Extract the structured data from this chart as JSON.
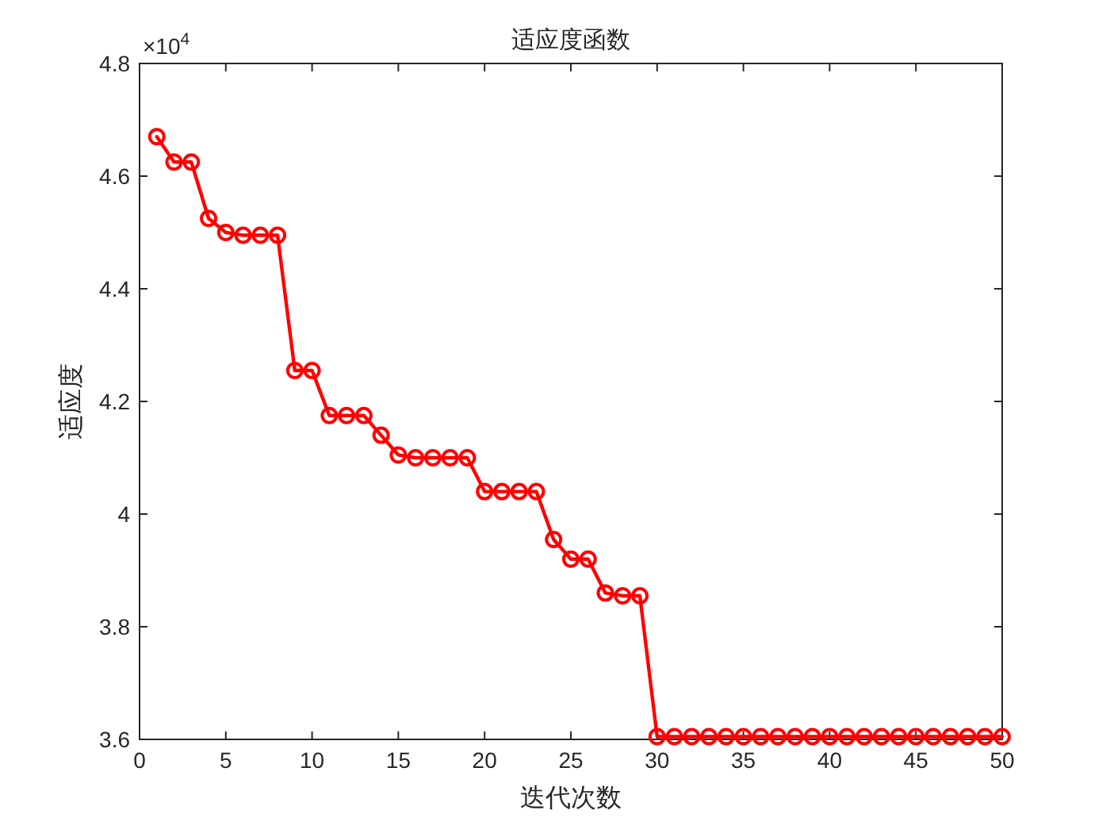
{
  "chart_data": {
    "type": "line",
    "title": "适应度函数",
    "xlabel": "迭代次数",
    "ylabel": "适应度",
    "annotations": [
      "×10$^{4}$"
    ],
    "x": [
      1,
      2,
      3,
      4,
      5,
      6,
      7,
      8,
      9,
      10,
      11,
      12,
      13,
      14,
      15,
      16,
      17,
      18,
      19,
      20,
      21,
      22,
      23,
      24,
      25,
      26,
      27,
      28,
      29,
      30,
      31,
      32,
      33,
      34,
      35,
      36,
      37,
      38,
      39,
      40,
      41,
      42,
      43,
      44,
      45,
      46,
      47,
      48,
      49,
      50
    ],
    "series": [
      {
        "color": "#ff0000",
        "values": [
          4.67,
          4.625,
          4.625,
          4.525,
          4.5,
          4.495,
          4.495,
          4.495,
          4.255,
          4.255,
          4.175,
          4.175,
          4.175,
          4.14,
          4.105,
          4.1,
          4.1,
          4.1,
          4.1,
          4.04,
          4.04,
          4.04,
          4.04,
          3.955,
          3.92,
          3.92,
          3.86,
          3.855,
          3.855,
          3.605,
          3.605,
          3.605,
          3.605,
          3.605,
          3.605,
          3.605,
          3.605,
          3.605,
          3.605,
          3.605,
          3.605,
          3.605,
          3.605,
          3.605,
          3.605,
          3.605,
          3.605,
          3.605,
          3.605,
          3.605
        ]
      }
    ],
    "xlim": [
      0,
      50
    ],
    "xticks": [
      0,
      5,
      10,
      15,
      20,
      25,
      30,
      35,
      40,
      45,
      50
    ],
    "ylim": [
      3.6,
      4.8
    ],
    "yticks": [
      3.6,
      3.8,
      4,
      4.2,
      4.4,
      4.6,
      4.8
    ],
    "marker": "circle",
    "line_style": "solid",
    "grid": false
  }
}
